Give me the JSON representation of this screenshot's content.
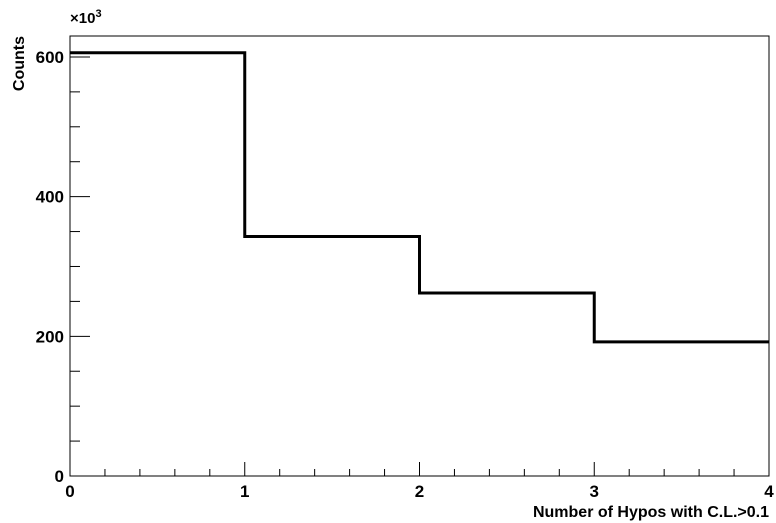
{
  "chart_data": {
    "type": "histogram",
    "title": "",
    "xlabel": "Number of Hypos with C.L.>0.1",
    "ylabel": "Counts",
    "y_multiplier_label": "×10",
    "y_multiplier_exponent": "3",
    "xlim": [
      0,
      4
    ],
    "ylim": [
      0,
      630
    ],
    "bins": [
      {
        "x0": 0,
        "x1": 1,
        "value": 606
      },
      {
        "x0": 1,
        "x1": 2,
        "value": 343
      },
      {
        "x0": 2,
        "x1": 3,
        "value": 262
      },
      {
        "x0": 3,
        "x1": 4,
        "value": 192
      }
    ],
    "x_ticks": [
      {
        "value": 0,
        "label": "0"
      },
      {
        "value": 1,
        "label": "1"
      },
      {
        "value": 2,
        "label": "2"
      },
      {
        "value": 3,
        "label": "3"
      },
      {
        "value": 4,
        "label": "4"
      }
    ],
    "y_ticks": [
      {
        "value": 0,
        "label": "0"
      },
      {
        "value": 200,
        "label": "200"
      },
      {
        "value": 400,
        "label": "400"
      },
      {
        "value": 600,
        "label": "600"
      }
    ],
    "x_minor_step": 0.2,
    "y_minor_step": 50,
    "grid": false,
    "legend": "none",
    "line_color": "#000000"
  }
}
